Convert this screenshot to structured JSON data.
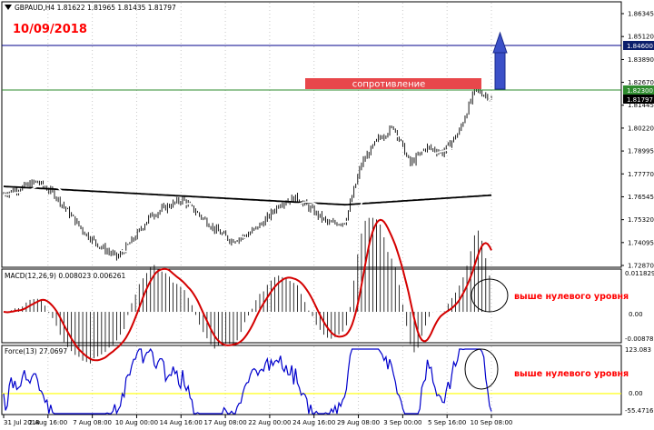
{
  "instrument": {
    "header": "GBPAUD,H4  1.81622 1.81965 1.81435 1.81797",
    "date_annotation": "10/09/2018"
  },
  "colors": {
    "price_bars": "#000000",
    "ma_long": "#000000",
    "ma_short": "#ffffff",
    "resistance_line": "#2e8b2e",
    "target_line": "#00008b",
    "resistance_box": "#e8474b",
    "arrow": "#3b50c8",
    "macd_signal": "#d40000",
    "force_line": "#0000cc",
    "force_zero": "#ffff00",
    "annotation_red": "#ff0000",
    "label_bg_dark": "#0b1f6b",
    "label_bg_green": "#2e8b2e"
  },
  "annotations": {
    "resistance_label": "сопротивление",
    "macd_note": "выше нулевого уровня",
    "force_note": "выше нулевого уровня"
  },
  "price_axis": {
    "ticks": [
      "1.86345",
      "1.85120",
      "1.83890",
      "1.82670",
      "1.81445",
      "1.80220",
      "1.78995",
      "1.77770",
      "1.76545",
      "1.75320",
      "1.74095",
      "1.72870"
    ],
    "target_label": "1.84600",
    "resistance_label": "1.82300",
    "current_label": "1.81797"
  },
  "macd": {
    "title": "MACD(12,26,9) 0.008023 0.006261",
    "ticks": [
      "0.011829",
      "0.00",
      "-0.00878"
    ]
  },
  "force": {
    "title": "Force(13) 27.0697",
    "ticks": [
      "123.083",
      "0.00",
      "-55.4716"
    ]
  },
  "time_axis": {
    "labels": [
      "31 Jul 2018",
      "2 Aug 16:00",
      "7 Aug 08:00",
      "10 Aug 00:00",
      "14 Aug 16:00",
      "17 Aug 08:00",
      "22 Aug 00:00",
      "24 Aug 16:00",
      "29 Aug 08:00",
      "3 Sep 00:00",
      "5 Sep 16:00",
      "10 Sep 08:00"
    ]
  },
  "chart_data": {
    "type": "line",
    "series": [
      {
        "name": "GBPAUD",
        "values": [
          1.767,
          1.77,
          1.7735,
          1.768,
          1.757,
          1.746,
          1.7385,
          1.733,
          1.743,
          1.755,
          1.76,
          1.764,
          1.756,
          1.748,
          1.742,
          1.745,
          1.752,
          1.762,
          1.765,
          1.758,
          1.751,
          1.752,
          1.783,
          1.796,
          1.803,
          1.783,
          1.792,
          1.789,
          1.8,
          1.823,
          1.818
        ]
      }
    ],
    "ylim": [
      1.7287,
      1.86345
    ]
  }
}
